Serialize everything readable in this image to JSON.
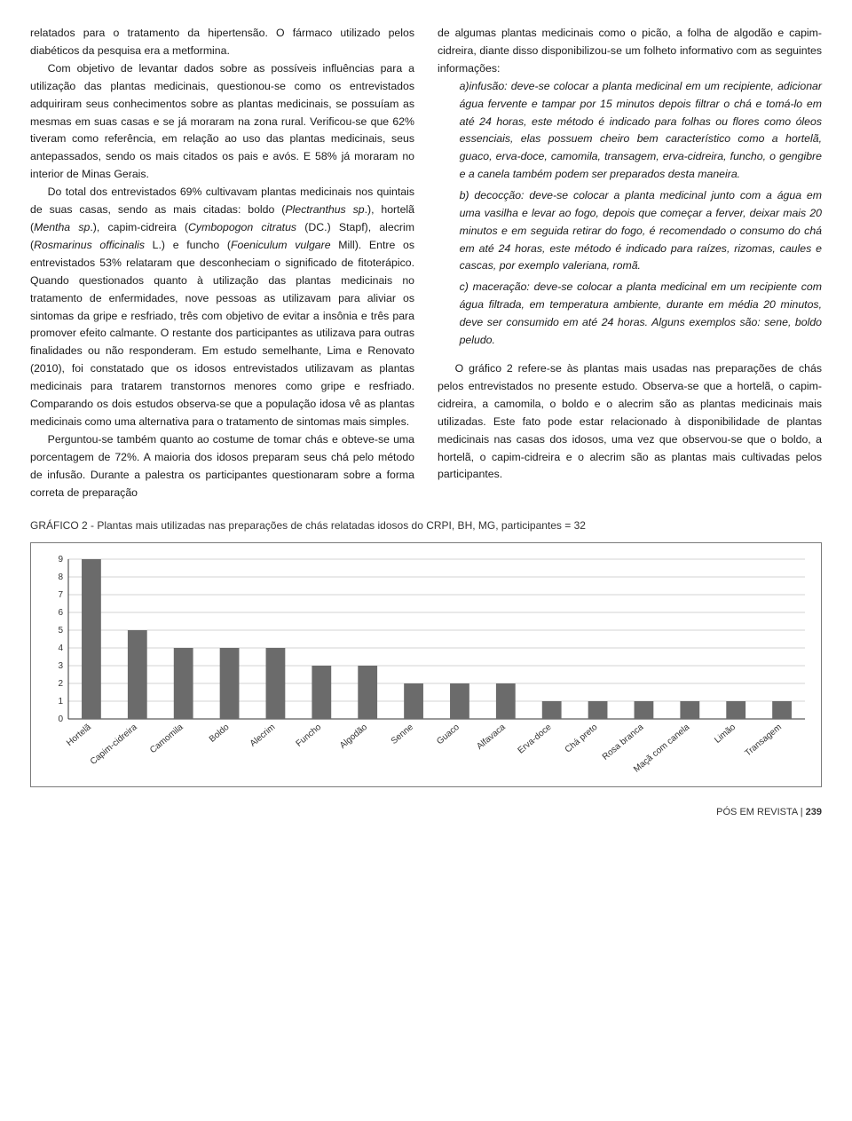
{
  "left_col": {
    "p1_cont": "relatados para o tratamento da hipertensão. O fármaco utilizado pelos diabéticos da pesquisa era a metformina.",
    "p2": "Com objetivo de levantar dados sobre as possíveis influências para a utilização das plantas medicinais, questionou-se como os entrevistados adquiriram seus conhecimentos sobre as plantas medicinais, se possuíam as mesmas em suas casas e se já moraram na zona rural. Verificou-se que 62% tiveram como referência, em relação ao uso das plantas medicinais, seus antepassados, sendo os mais citados os pais e avós. E 58% já moraram no interior de Minas Gerais.",
    "p3_a": "Do total dos entrevistados 69% cultivavam plantas medicinais nos quintais de suas casas, sendo as mais citadas: boldo (",
    "p3_i1": "Plectranthus sp",
    "p3_b": ".), hortelã (",
    "p3_i2": "Mentha sp",
    "p3_c": ".), capim-cidreira (",
    "p3_i3": "Cymbopogon citratus",
    "p3_d": " (DC.) Stapf), alecrim (",
    "p3_i4": "Rosmarinus officinalis",
    "p3_e": " L.) e funcho (",
    "p3_i5": "Foeniculum vulgare",
    "p3_f": " Mill). Entre os entrevistados 53% relataram que desconheciam o significado de fitoterápico. Quando questionados quanto à utilização das plantas medicinais no tratamento de enfermidades, nove pessoas as utilizavam para aliviar os sintomas da gripe e resfriado, três com objetivo de evitar a insônia e três para promover efeito calmante. O restante dos participantes as utilizava para outras finalidades ou não responderam. Em estudo semelhante, Lima e Renovato (2010), foi constatado que os idosos entrevistados utilizavam as plantas medicinais para tratarem transtornos menores como gripe e resfriado. Comparando os dois estudos observa-se que a população idosa vê as plantas medicinais como uma alternativa para o tratamento de sintomas mais simples.",
    "p4": "Perguntou-se também quanto ao costume de tomar chás e obteve-se uma porcentagem de 72%. A maioria dos idosos preparam seus chá pelo método de infusão. Durante a palestra os participantes questionaram sobre a forma correta de preparação"
  },
  "right_col": {
    "p1_cont": "de algumas plantas medicinais como o picão, a folha de algodão e capim-cidreira, diante disso disponibilizou-se um folheto informativo com as seguintes informações:",
    "bullet_a": "a)infusão: deve-se colocar a planta medicinal em um recipiente, adicionar água fervente e tampar por 15 minutos depois filtrar o chá e tomá-lo em até 24 horas, este método é indicado para folhas ou flores como óleos essenciais, elas possuem cheiro bem característico como a hortelã, guaco, erva-doce, camomila, transagem, erva-cidreira, funcho, o gengibre e a canela também podem ser preparados desta maneira.",
    "bullet_b": "b) decocção: deve-se colocar a planta medicinal junto com a água em uma vasilha e levar ao fogo, depois que começar a ferver, deixar mais 20 minutos e em seguida retirar do fogo, é recomendado o consumo do chá em até 24 horas, este método é indicado para raízes, rizomas, caules e cascas, por exemplo valeriana, romã.",
    "bullet_c": "c) maceração: deve-se colocar a planta medicinal em um recipiente com água filtrada, em temperatura ambiente, durante em média 20 minutos, deve ser consumido em até 24 horas. Alguns exemplos são: sene, boldo peludo.",
    "p2": "O gráfico 2 refere-se às plantas mais usadas nas preparações de chás pelos entrevistados no presente estudo. Observa-se que a hortelã, o capim-cidreira, a camomila, o boldo e o alecrim são as plantas medicinais mais utilizadas. Este fato pode estar relacionado à disponibilidade de plantas medicinais nas casas dos idosos, uma vez que observou-se que o boldo, a hortelã, o capim-cidreira e o alecrim são as plantas mais cultivadas pelos participantes."
  },
  "chart": {
    "caption": "GRÁFICO 2 - Plantas mais utilizadas nas preparações de chás relatadas idosos do CRPI, BH, MG, participantes = 32",
    "categories": [
      "Hortelã",
      "Capim-cidreira",
      "Camomila",
      "Boldo",
      "Alecrim",
      "Funcho",
      "Algodão",
      "Senne",
      "Guaco",
      "Alfavaca",
      "Erva-doce",
      "Chá preto",
      "Rosa branca",
      "Maçã com canela",
      "Limão",
      "Transagem"
    ],
    "values": [
      9,
      5,
      4,
      4,
      4,
      3,
      3,
      2,
      2,
      2,
      1,
      1,
      1,
      1,
      1,
      1
    ],
    "bar_color": "#6b6b6b",
    "grid_color": "#a8a8a8",
    "axis_color": "#333333",
    "ytick_step": 1,
    "ymax": 9,
    "ymin": 0,
    "label_fontsize": 10,
    "bar_width_ratio": 0.42
  },
  "footer": {
    "journal": "PÓS EM REVISTA",
    "separator": " | ",
    "page": "239"
  }
}
